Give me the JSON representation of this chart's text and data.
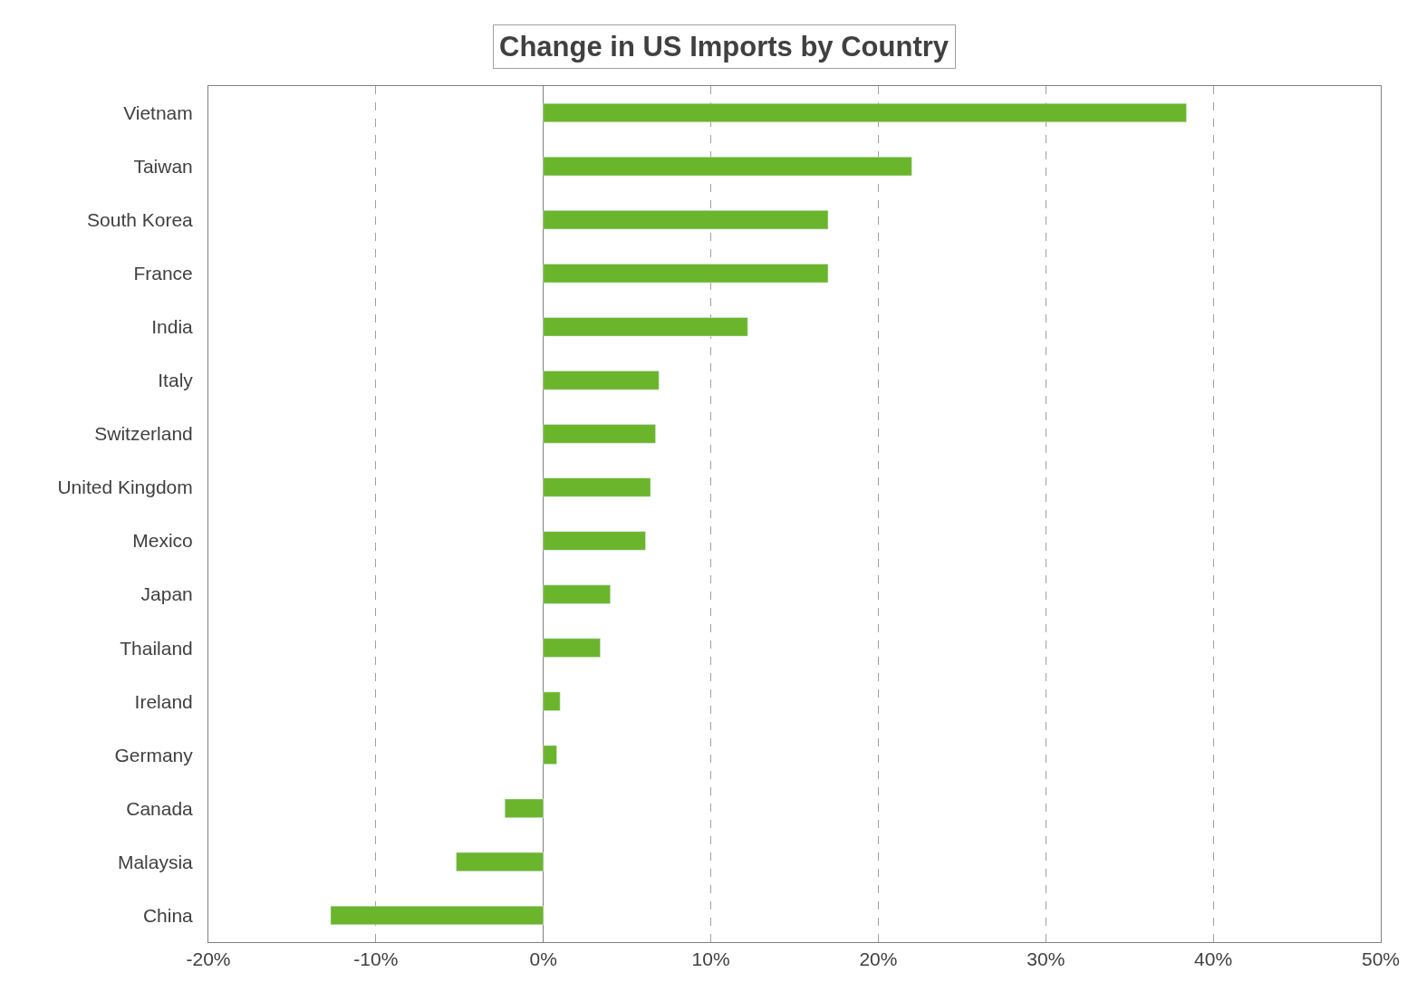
{
  "chart_data": {
    "type": "bar",
    "title": "Change in US Imports by Country",
    "orientation": "horizontal",
    "categories": [
      "Vietnam",
      "Taiwan",
      "South Korea",
      "France",
      "India",
      "Italy",
      "Switzerland",
      "United Kingdom",
      "Mexico",
      "Japan",
      "Thailand",
      "Ireland",
      "Germany",
      "Canada",
      "Malaysia",
      "China"
    ],
    "values": [
      38.4,
      22.0,
      17.0,
      17.0,
      12.2,
      6.9,
      6.7,
      6.4,
      6.1,
      4.0,
      3.4,
      1.0,
      0.8,
      -2.3,
      -5.2,
      -12.7
    ],
    "color": "#6ab52c",
    "xlim": [
      -20,
      50
    ],
    "xticks": [
      {
        "value": -20,
        "label": "-20%"
      },
      {
        "value": -10,
        "label": "-10%"
      },
      {
        "value": 0,
        "label": "0%"
      },
      {
        "value": 10,
        "label": "10%"
      },
      {
        "value": 20,
        "label": "20%"
      },
      {
        "value": 30,
        "label": "30%"
      },
      {
        "value": 40,
        "label": "40%"
      },
      {
        "value": 50,
        "label": "50%"
      }
    ],
    "grid": "x",
    "line_style": "dashed"
  }
}
